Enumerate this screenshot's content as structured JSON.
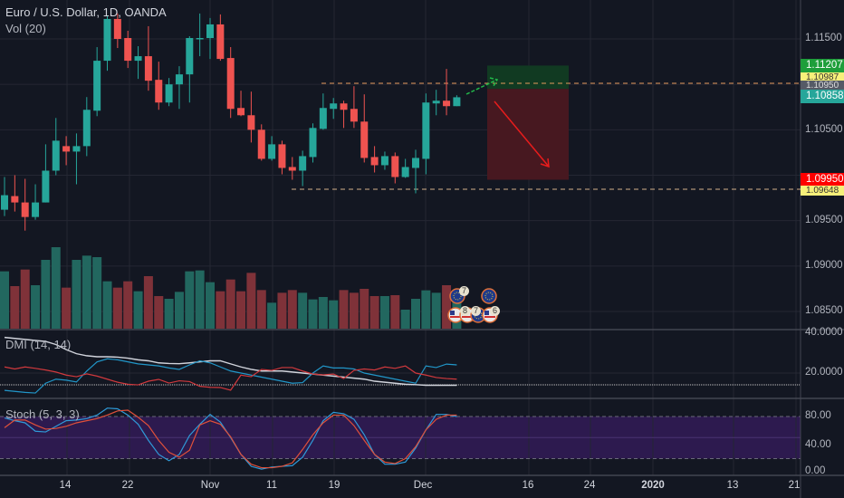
{
  "header": {
    "title": "Euro / U.S. Dollar, 1D, OANDA",
    "volume_label": "Vol (20)"
  },
  "indicators": {
    "dmi_label": "DMI (14, 14)",
    "stoch_label": "Stoch (5, 3, 3)"
  },
  "price_axis": [
    "1.11500",
    "1.10500",
    "1.09500",
    "1.09000",
    "1.08500"
  ],
  "dmi_axis": [
    "40.0000",
    "20.0000"
  ],
  "stoch_axis": [
    "80.00",
    "40.00",
    "0.00"
  ],
  "price_tags": {
    "take_profit": "1.11207",
    "level_upper": "1.10987",
    "entry": "1.10950",
    "last_price": "1.10858",
    "stop": "1.09950",
    "level_lower": "1.09648"
  },
  "time_axis": [
    "14",
    "22",
    "Nov",
    "11",
    "19",
    "Dec",
    "16",
    "24",
    "2020",
    "13",
    "21"
  ],
  "events": [
    {
      "flag": "eu",
      "count": "7"
    },
    {
      "flag": "eu",
      "count": ""
    },
    {
      "flag": "us",
      "count": "8"
    },
    {
      "flag": "us",
      "count": "7"
    },
    {
      "flag": "eu",
      "count": ""
    },
    {
      "flag": "us",
      "count": "6"
    }
  ],
  "colors": {
    "background": "#131722",
    "up": "#26a69a",
    "down": "#ef5350",
    "vol_up": "#22675f",
    "vol_down": "#7f3239",
    "grid": "#242733",
    "adx": "#d1d4dc",
    "plus_di": "#2196c8",
    "minus_di": "#d0393d",
    "stoch_k": "#2f9ad8",
    "stoch_d": "#e0503a",
    "stoch_band": "#2d1a4f",
    "tp_zone": "#113a22",
    "sl_zone": "#471820",
    "level_line": "#e59a5c"
  },
  "chart_data": {
    "type": "candlestick",
    "symbol": "EURUSD",
    "interval": "1D",
    "ylim": [
      1.0835,
      1.1195
    ],
    "candles_ohlc": [
      [
        1.0962,
        1.0998,
        1.0955,
        1.0978
      ],
      [
        1.0977,
        1.1,
        1.096,
        1.097
      ],
      [
        1.097,
        1.0996,
        1.0939,
        1.0954
      ],
      [
        1.0954,
        1.099,
        1.0951,
        1.097
      ],
      [
        1.097,
        1.1034,
        1.097,
        1.1005
      ],
      [
        1.1005,
        1.1063,
        1.1,
        1.1038
      ],
      [
        1.1032,
        1.1043,
        1.1011,
        1.1026
      ],
      [
        1.1026,
        1.1046,
        1.099,
        1.1032
      ],
      [
        1.1032,
        1.1086,
        1.1021,
        1.1072
      ],
      [
        1.1071,
        1.1141,
        1.1065,
        1.1126
      ],
      [
        1.1126,
        1.1175,
        1.1115,
        1.1172
      ],
      [
        1.1172,
        1.1178,
        1.114,
        1.115
      ],
      [
        1.1151,
        1.1159,
        1.1118,
        1.1126
      ],
      [
        1.1126,
        1.1142,
        1.1106,
        1.1131
      ],
      [
        1.1131,
        1.1164,
        1.1093,
        1.1104
      ],
      [
        1.1105,
        1.1125,
        1.1072,
        1.108
      ],
      [
        1.108,
        1.1107,
        1.1076,
        1.11
      ],
      [
        1.11,
        1.112,
        1.1073,
        1.1111
      ],
      [
        1.1111,
        1.1153,
        1.108,
        1.1151
      ],
      [
        1.115,
        1.1178,
        1.1131,
        1.1151
      ],
      [
        1.1151,
        1.1173,
        1.1128,
        1.1166
      ],
      [
        1.1166,
        1.1177,
        1.1126,
        1.1128
      ],
      [
        1.1129,
        1.1141,
        1.1063,
        1.1073
      ],
      [
        1.1074,
        1.1093,
        1.1065,
        1.1066
      ],
      [
        1.1066,
        1.1092,
        1.1036,
        1.105
      ],
      [
        1.105,
        1.1056,
        1.1016,
        1.1018
      ],
      [
        1.1018,
        1.1043,
        1.1016,
        1.1034
      ],
      [
        1.1034,
        1.1038,
        1.1001,
        1.1008
      ],
      [
        1.1009,
        1.102,
        1.0995,
        1.1005
      ],
      [
        1.1005,
        1.1027,
        1.0988,
        1.1021
      ],
      [
        1.102,
        1.1057,
        1.1014,
        1.1052
      ],
      [
        1.1051,
        1.109,
        1.105,
        1.1074
      ],
      [
        1.1073,
        1.1085,
        1.1062,
        1.1079
      ],
      [
        1.1079,
        1.1082,
        1.1052,
        1.1072
      ],
      [
        1.1073,
        1.1098,
        1.1052,
        1.1059
      ],
      [
        1.1059,
        1.1089,
        1.1014,
        1.1019
      ],
      [
        1.102,
        1.1032,
        1.1003,
        1.1011
      ],
      [
        1.1011,
        1.1026,
        1.1006,
        1.1021
      ],
      [
        1.1021,
        1.1025,
        1.0991,
        1.0998
      ],
      [
        1.0998,
        1.1018,
        1.0997,
        1.1009
      ],
      [
        1.1008,
        1.1028,
        1.098,
        1.1019
      ],
      [
        1.1018,
        1.109,
        1.1001,
        1.108
      ],
      [
        1.1079,
        1.1094,
        1.1066,
        1.1082
      ],
      [
        1.1082,
        1.1117,
        1.1066,
        1.1076
      ],
      [
        1.1076,
        1.1088,
        1.1076,
        1.10858
      ]
    ],
    "volume": [
      190,
      141,
      196,
      144,
      228,
      270,
      136,
      228,
      242,
      237,
      157,
      136,
      157,
      124,
      174,
      108,
      99,
      122,
      190,
      193,
      154,
      124,
      163,
      124,
      185,
      128,
      86,
      119,
      128,
      119,
      97,
      105,
      94,
      128,
      119,
      132,
      108,
      108,
      111,
      63,
      99,
      127,
      119,
      144,
      100
    ],
    "dmi": {
      "adx": [
        37.5,
        37,
        36.5,
        36,
        35.5,
        34,
        31.5,
        29.5,
        28.5,
        28,
        28,
        27.8,
        27.3,
        26.5,
        26,
        25,
        24.7,
        24.6,
        25,
        25.5,
        26,
        26,
        24.5,
        23,
        21.8,
        21,
        21,
        21,
        20.5,
        20,
        19.5,
        19,
        18.5,
        18,
        17.5,
        17,
        16,
        15.5,
        15,
        14.5,
        14.3,
        14,
        14,
        14,
        14
      ],
      "plus_di": [
        11.5,
        11,
        10.5,
        10.2,
        15,
        17,
        16.5,
        15.6,
        21,
        25.5,
        27,
        26.5,
        25.5,
        24.5,
        24,
        23.5,
        22.5,
        21.8,
        24,
        26,
        25,
        23,
        21,
        20,
        19,
        18,
        17,
        16,
        15,
        15.3,
        20,
        23.5,
        22.5,
        22.5,
        22,
        20,
        19,
        18,
        17,
        16,
        15,
        23.5,
        22.7,
        24.4,
        24
      ],
      "minus_di": [
        23,
        22,
        23,
        22.3,
        21.5,
        20.5,
        19,
        18.2,
        19.6,
        18.5,
        17,
        15.5,
        14.5,
        14.2,
        16,
        16.9,
        15.1,
        16.2,
        15.8,
        13.5,
        13,
        12.9,
        11.6,
        19,
        18.2,
        21.8,
        21.3,
        22.7,
        22.7,
        21,
        19.5,
        19.1,
        19.5,
        17.3,
        21.3,
        22,
        21.5,
        23,
        22.3,
        23.5,
        20,
        19,
        17.8,
        17.3,
        17
      ],
      "ylim": [
        0,
        45
      ],
      "reference_level": 14.2
    },
    "stoch": {
      "k": [
        78,
        74,
        71,
        59,
        58,
        66,
        74,
        75,
        77,
        82,
        92,
        91,
        82,
        69,
        46,
        26,
        17,
        26,
        53,
        69,
        83,
        72,
        50,
        26,
        9,
        5,
        8,
        9,
        10,
        22,
        46,
        74,
        86,
        84,
        76,
        54,
        26,
        12,
        12,
        15,
        35,
        61,
        83,
        83,
        80
      ],
      "d": [
        64,
        75,
        75,
        68,
        62,
        63,
        66,
        71,
        74,
        77,
        82,
        88,
        89,
        79,
        67,
        46,
        29,
        22,
        32,
        68,
        74,
        69,
        51,
        26,
        12,
        7,
        7,
        9,
        14,
        33,
        54,
        71,
        82,
        82,
        67,
        46,
        26,
        15,
        13,
        20,
        37,
        61,
        76,
        82,
        82
      ],
      "bands": [
        20,
        80
      ],
      "ylim": [
        0,
        100
      ]
    },
    "position": {
      "type": "short",
      "entry": 1.1095,
      "take_profit_top": 1.11207,
      "stop_bottom": 1.0995
    }
  }
}
